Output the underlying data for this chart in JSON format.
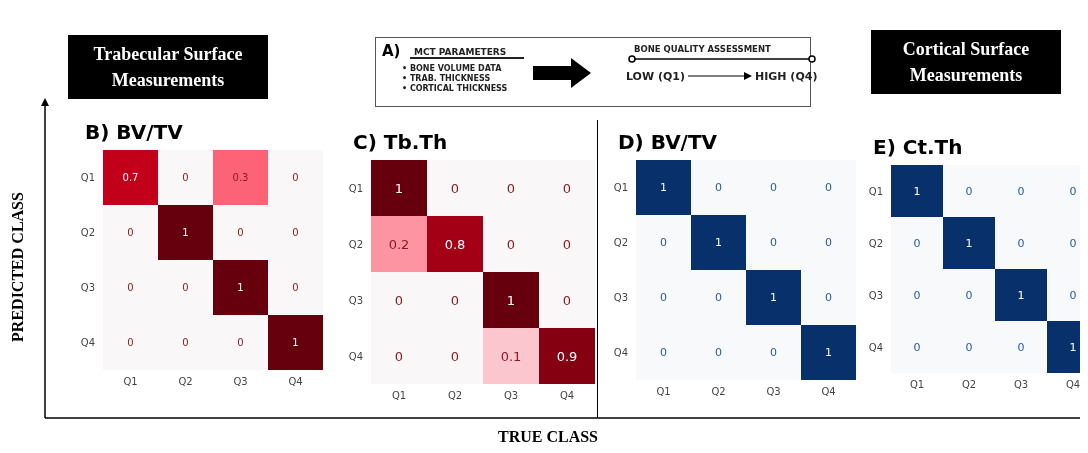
{
  "chart_data": [
    {
      "type": "other",
      "annotations": [
        "Trabecular Surface Measurements",
        "A)",
        "MCT PARAMETERS",
        "• BONE VOLUME DATA",
        "• TRAB. THICKNESS",
        "• CORTICAL THICKNESS",
        "BONE QUALITY ASSESSMENT",
        "LOW (Q1)",
        "HIGH (Q4)",
        "Cortical Surface Measurements",
        "PREDICTED CLASS",
        "TRUE CLASS"
      ]
    },
    {
      "type": "heatmap",
      "title": "B) BV/TV",
      "color": "#67000d",
      "categories": [
        "Q1",
        "Q2",
        "Q3",
        "Q4"
      ],
      "y_categories": [
        "Q1",
        "Q2",
        "Q3",
        "Q4"
      ],
      "cells": [
        [
          0.7,
          0,
          0.3,
          0
        ],
        [
          0,
          1,
          0,
          0
        ],
        [
          0,
          0,
          1,
          0
        ],
        [
          0,
          0,
          0,
          1
        ]
      ],
      "data_labels": true
    },
    {
      "type": "heatmap",
      "title": "C) Tb.Th",
      "color": "#67000d",
      "categories": [
        "Q1",
        "Q2",
        "Q3",
        "Q4"
      ],
      "y_categories": [
        "Q1",
        "Q2",
        "Q3",
        "Q4"
      ],
      "cells": [
        [
          1,
          0,
          0,
          0
        ],
        [
          0.2,
          0.8,
          0,
          0
        ],
        [
          0,
          0,
          1,
          0
        ],
        [
          0,
          0,
          0.1,
          0.9
        ]
      ],
      "data_labels": true
    },
    {
      "type": "heatmap",
      "title": "D) BV/TV",
      "color": "#08306b",
      "categories": [
        "Q1",
        "Q2",
        "Q3",
        "Q4"
      ],
      "y_categories": [
        "Q1",
        "Q2",
        "Q3",
        "Q4"
      ],
      "cells": [
        [
          1,
          0,
          0,
          0
        ],
        [
          0,
          1,
          0,
          0
        ],
        [
          0,
          0,
          1,
          0
        ],
        [
          0,
          0,
          0,
          1
        ]
      ],
      "data_labels": true
    },
    {
      "type": "heatmap",
      "title": "E) Ct.Th",
      "color": "#08306b",
      "categories": [
        "Q1",
        "Q2",
        "Q3",
        "Q4"
      ],
      "y_categories": [
        "Q1",
        "Q2",
        "Q3",
        "Q4"
      ],
      "cells": [
        [
          1,
          0,
          0,
          0
        ],
        [
          0,
          1,
          0,
          0
        ],
        [
          0,
          0,
          1,
          0
        ],
        [
          0,
          0,
          0,
          1
        ]
      ],
      "data_labels": true
    }
  ]
}
